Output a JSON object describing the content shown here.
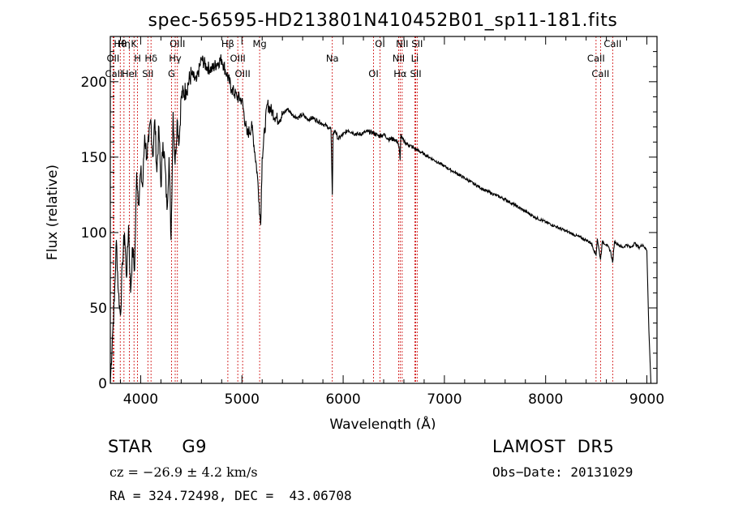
{
  "chart_data": {
    "type": "line",
    "title": "spec-56595-HD213801N410452B01_sp11-181.fits",
    "xlabel": "Wavelength (Å)",
    "ylabel": "Flux (relative)",
    "xlim": [
      3700,
      9100
    ],
    "ylim": [
      0,
      230
    ],
    "x_ticks": [
      4000,
      5000,
      6000,
      7000,
      8000,
      9000
    ],
    "y_ticks": [
      0,
      50,
      100,
      150,
      200
    ],
    "grid": false,
    "line_color": "#000000",
    "marker_color": "#cc0000",
    "series": [
      {
        "x": [
          3700,
          3720,
          3740,
          3760,
          3780,
          3800,
          3820,
          3840,
          3860,
          3880,
          3900,
          3920,
          3940,
          3960,
          3980,
          4000,
          4020,
          4040,
          4060,
          4080,
          4100,
          4120,
          4140,
          4160,
          4180,
          4200,
          4220,
          4240,
          4260,
          4280,
          4300,
          4320,
          4340,
          4360,
          4380,
          4400,
          4450,
          4500,
          4550,
          4600,
          4650,
          4700,
          4750,
          4800,
          4850,
          4900,
          4950,
          5000,
          5050,
          5100,
          5150,
          5170,
          5185,
          5200,
          5250,
          5300,
          5350,
          5400,
          5450,
          5500,
          5550,
          5600,
          5650,
          5700,
          5750,
          5800,
          5850,
          5880,
          5893,
          5900,
          5920,
          5950,
          6000,
          6050,
          6100,
          6150,
          6200,
          6250,
          6300,
          6350,
          6400,
          6450,
          6500,
          6540,
          6555,
          6563,
          6570,
          6600,
          6650,
          6700,
          6800,
          6900,
          7000,
          7100,
          7200,
          7300,
          7400,
          7500,
          7600,
          7700,
          7800,
          7900,
          8000,
          8100,
          8200,
          8300,
          8400,
          8450,
          8498,
          8510,
          8542,
          8560,
          8600,
          8640,
          8662,
          8680,
          8720,
          8760,
          8800,
          8840,
          8880,
          8920,
          8960,
          9000,
          9020,
          9040
        ],
        "values": [
          0,
          30,
          55,
          95,
          60,
          45,
          80,
          100,
          70,
          105,
          60,
          90,
          75,
          140,
          120,
          140,
          130,
          165,
          150,
          160,
          175,
          150,
          175,
          140,
          170,
          130,
          160,
          145,
          115,
          150,
          95,
          180,
          145,
          175,
          160,
          190,
          195,
          205,
          200,
          215,
          210,
          208,
          212,
          215,
          205,
          195,
          190,
          188,
          165,
          170,
          140,
          120,
          105,
          150,
          185,
          180,
          175,
          178,
          182,
          178,
          176,
          178,
          175,
          176,
          174,
          172,
          170,
          168,
          125,
          165,
          168,
          162,
          165,
          168,
          166,
          165,
          166,
          167,
          166,
          164,
          165,
          162,
          162,
          160,
          155,
          148,
          165,
          160,
          158,
          156,
          152,
          148,
          144,
          140,
          136,
          132,
          128,
          125,
          122,
          118,
          114,
          110,
          107,
          104,
          101,
          98,
          95,
          93,
          85,
          96,
          82,
          94,
          92,
          88,
          80,
          94,
          92,
          90,
          92,
          90,
          93,
          90,
          92,
          88,
          35,
          0
        ]
      }
    ],
    "lines": [
      {
        "name": "Hθ",
        "x": 3798
      },
      {
        "name": "OII",
        "x": 3727
      },
      {
        "name": "CaII",
        "x": 3736
      },
      {
        "name": "K",
        "x": 3934
      },
      {
        "name": "H",
        "x": 3969
      },
      {
        "name": "HeI",
        "x": 3889
      },
      {
        "name": "Hη",
        "x": 3835
      },
      {
        "name": "Hδ",
        "x": 4102
      },
      {
        "name": "SII",
        "x": 4071
      },
      {
        "name": "OIII",
        "x": 4363
      },
      {
        "name": "Hγ",
        "x": 4341
      },
      {
        "name": "G",
        "x": 4305
      },
      {
        "name": "Hβ",
        "x": 4861
      },
      {
        "name": "OIII",
        "x": 4959
      },
      {
        "name": "OIII",
        "x": 5007
      },
      {
        "name": "Mg",
        "x": 5175
      },
      {
        "name": "Na",
        "x": 5893
      },
      {
        "name": "OI",
        "x": 6300
      },
      {
        "name": "OI",
        "x": 6364
      },
      {
        "name": "NII",
        "x": 6548
      },
      {
        "name": "Hα",
        "x": 6563
      },
      {
        "name": "NII",
        "x": 6583
      },
      {
        "name": "Li",
        "x": 6708
      },
      {
        "name": "SII",
        "x": 6717
      },
      {
        "name": "SII",
        "x": 6731
      },
      {
        "name": "CaII",
        "x": 8498
      },
      {
        "name": "CaII",
        "x": 8542
      },
      {
        "name": "CaII",
        "x": 8662
      }
    ]
  },
  "info": {
    "object": "STAR     G9",
    "survey": "LAMOST  DR5",
    "cz": "cz = −26.9 ± 4.2 km/s",
    "obs_date": "Obs−Date: 20131029",
    "coords": "RA = 324.72498, DEC =  43.06708"
  }
}
